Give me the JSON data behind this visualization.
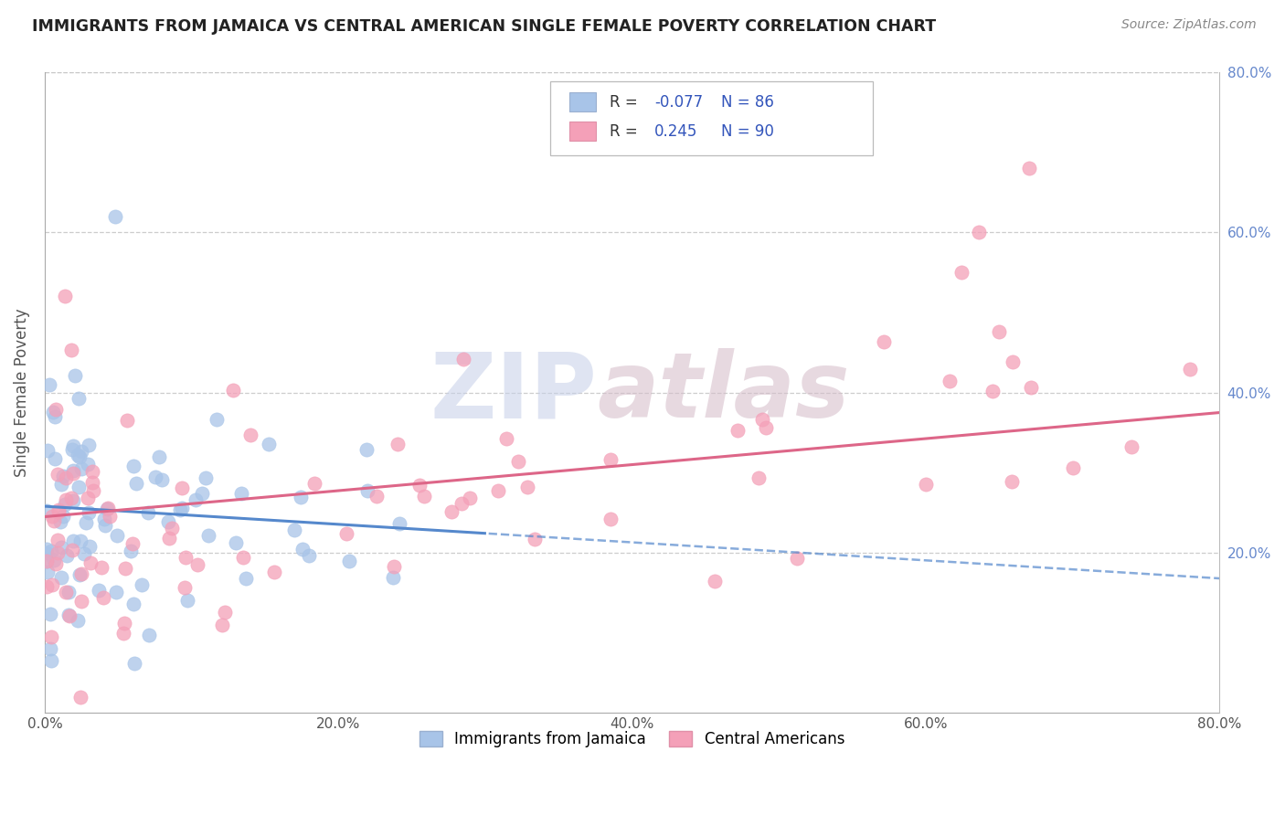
{
  "title": "IMMIGRANTS FROM JAMAICA VS CENTRAL AMERICAN SINGLE FEMALE POVERTY CORRELATION CHART",
  "source": "Source: ZipAtlas.com",
  "ylabel": "Single Female Poverty",
  "xlim": [
    0.0,
    0.8
  ],
  "ylim": [
    0.0,
    0.8
  ],
  "xticks": [
    0.0,
    0.2,
    0.4,
    0.6,
    0.8
  ],
  "yticks": [
    0.2,
    0.4,
    0.6,
    0.8
  ],
  "xticklabels": [
    "0.0%",
    "20.0%",
    "40.0%",
    "60.0%",
    "80.0%"
  ],
  "right_yticklabels": [
    "20.0%",
    "40.0%",
    "60.0%",
    "80.0%"
  ],
  "watermark_zip": "ZIP",
  "watermark_atlas": "atlas",
  "series1_color": "#a8c4e8",
  "series2_color": "#f4a0b8",
  "series1_label": "Immigrants from Jamaica",
  "series2_label": "Central Americans",
  "series1_R": -0.077,
  "series1_N": 86,
  "series2_R": 0.245,
  "series2_N": 90,
  "trend1_color": "#5588cc",
  "trend2_color": "#dd6688",
  "legend_color": "#3355bb",
  "background_color": "#ffffff",
  "grid_color": "#c8c8c8",
  "title_color": "#222222",
  "tick_color": "#6688cc"
}
